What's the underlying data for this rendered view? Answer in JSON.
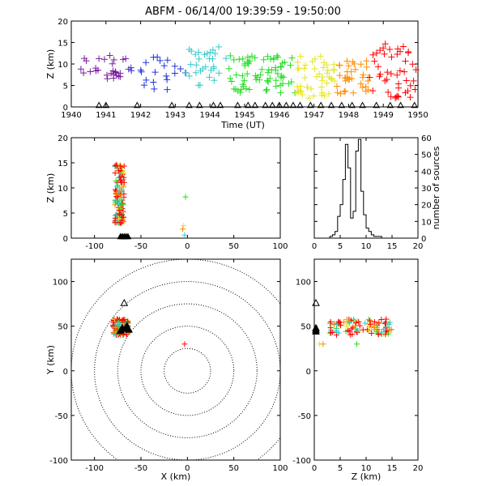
{
  "title": "ABFM - 06/14/00 19:39:59 - 19:50:00",
  "colors": {
    "purple": "#7a1fa0",
    "blue": "#2233dd",
    "cyan": "#33cccc",
    "green": "#22dd22",
    "yellow": "#e6e622",
    "orange": "#ff8c00",
    "red": "#ff0000",
    "black": "#000000"
  },
  "chart_data": [
    {
      "name": "time-height",
      "type": "scatter",
      "xlabel": "Time (UT)",
      "ylabel": "Z (km)",
      "xlim": [
        1940,
        1950
      ],
      "ylim": [
        0,
        20
      ],
      "xticks": [
        "1940",
        "1941",
        "1942",
        "1943",
        "1944",
        "1945",
        "1946",
        "1947",
        "1948",
        "1949",
        "1950"
      ],
      "yticks": [
        "0",
        "5",
        "10",
        "15",
        "20"
      ],
      "series_note": "color varies with time: purple -> blue -> cyan -> green -> yellow -> orange -> red",
      "clusters": [
        {
          "t": [
            1940.1,
            1941.7
          ],
          "z": [
            6,
            12
          ],
          "color": "purple",
          "n": 28
        },
        {
          "t": [
            1941.7,
            1943.3
          ],
          "z": [
            4,
            12
          ],
          "color": "blue",
          "n": 22
        },
        {
          "t": [
            1943.3,
            1944.5
          ],
          "z": [
            5,
            14
          ],
          "color": "cyan",
          "n": 30
        },
        {
          "t": [
            1944.5,
            1946.5
          ],
          "z": [
            3,
            12
          ],
          "color": "green",
          "n": 70
        },
        {
          "t": [
            1946.5,
            1947.6
          ],
          "z": [
            2,
            12
          ],
          "color": "yellow",
          "n": 45
        },
        {
          "t": [
            1947.6,
            1948.6
          ],
          "z": [
            3,
            11
          ],
          "color": "orange",
          "n": 35
        },
        {
          "t": [
            1948.6,
            1950.0
          ],
          "z": [
            2,
            15
          ],
          "color": "red",
          "n": 45
        }
      ],
      "ground_triangles_t": [
        1940.8,
        1941.0,
        1941.9,
        1942.9,
        1943.4,
        1943.7,
        1944.1,
        1944.3,
        1944.8,
        1945.1,
        1945.3,
        1945.6,
        1945.8,
        1946.0,
        1946.2,
        1946.4,
        1946.6,
        1946.9,
        1947.2,
        1947.5,
        1947.8,
        1948.1,
        1948.4,
        1948.8,
        1949.2,
        1949.5,
        1949.9
      ]
    },
    {
      "name": "x-z",
      "type": "scatter",
      "xlabel": "",
      "ylabel": "Z (km)",
      "xlim": [
        -125,
        100
      ],
      "ylim": [
        0,
        20
      ],
      "xticks": [
        "-100",
        "-50",
        "0",
        "50",
        "100"
      ],
      "yticks": [
        "0",
        "5",
        "10",
        "15",
        "20"
      ],
      "main_cluster": {
        "x": [
          -78,
          -68
        ],
        "z": [
          3,
          15
        ]
      },
      "outliers": [
        {
          "x": -2,
          "z": 8.2,
          "color": "green"
        },
        {
          "x": -4,
          "z": 2.5,
          "color": "yellow"
        },
        {
          "x": -5,
          "z": 1.8,
          "color": "orange"
        },
        {
          "x": -3,
          "z": 0.6,
          "color": "cyan"
        }
      ],
      "ground_triangles_x": [
        -72,
        -70,
        -68,
        -66,
        -64
      ]
    },
    {
      "name": "height-histogram",
      "type": "histogram",
      "xlabel": "",
      "ylabel": "number of sources",
      "xlim": [
        0,
        20
      ],
      "ylim": [
        0,
        60
      ],
      "xticks": [
        "0",
        "5",
        "10",
        "15",
        "20"
      ],
      "yticks": [
        "0",
        "10",
        "20",
        "30",
        "40",
        "50",
        "60"
      ],
      "bin_width": 0.5,
      "bins_start": 0,
      "counts": [
        0,
        0,
        0,
        0,
        0,
        0,
        1,
        2,
        4,
        13,
        20,
        35,
        56,
        42,
        12,
        16,
        52,
        59,
        28,
        14,
        6,
        4,
        2,
        1,
        1,
        1,
        0,
        0,
        0,
        0,
        0,
        0,
        0,
        0,
        0,
        0,
        0,
        0,
        0,
        0
      ]
    },
    {
      "name": "plan-view",
      "type": "scatter",
      "xlabel": "X (km)",
      "ylabel": "Y (km)",
      "xlim": [
        -125,
        100
      ],
      "ylim": [
        -100,
        125
      ],
      "xticks": [
        "-100",
        "-50",
        "0",
        "50",
        "100"
      ],
      "yticks": [
        "-100",
        "-50",
        "0",
        "50",
        "100"
      ],
      "range_rings_km": [
        25,
        50,
        75,
        100,
        125
      ],
      "main_cluster": {
        "x": [
          -80,
          -63
        ],
        "y": [
          40,
          58
        ]
      },
      "station_triangles": [
        {
          "x": -68,
          "y": 76
        },
        {
          "x": -70,
          "y": 48
        },
        {
          "x": -67,
          "y": 47
        },
        {
          "x": -65,
          "y": 50
        },
        {
          "x": -72,
          "y": 45
        },
        {
          "x": -63,
          "y": 46
        }
      ],
      "outlier": {
        "x": -3,
        "y": 30
      }
    },
    {
      "name": "z-y",
      "type": "scatter",
      "xlabel": "Z (km)",
      "ylabel": "",
      "xlim": [
        0,
        20
      ],
      "ylim": [
        -100,
        125
      ],
      "xticks": [
        "0",
        "5",
        "10",
        "15",
        "20"
      ],
      "yticks": [
        "-100",
        "-50",
        "0",
        "50",
        "100"
      ],
      "main_cluster": {
        "z": [
          3,
          15
        ],
        "y": [
          40,
          58
        ]
      },
      "outliers": [
        {
          "z": 1,
          "y": 30,
          "color": "yellow"
        },
        {
          "z": 1.7,
          "y": 30,
          "color": "orange"
        },
        {
          "z": 8.2,
          "y": 30,
          "color": "green"
        }
      ],
      "station_triangles": [
        {
          "z": 0,
          "y": 76
        },
        {
          "z": 0,
          "y": 48
        },
        {
          "z": 0,
          "y": 46
        },
        {
          "z": 0,
          "y": 44
        }
      ]
    }
  ]
}
